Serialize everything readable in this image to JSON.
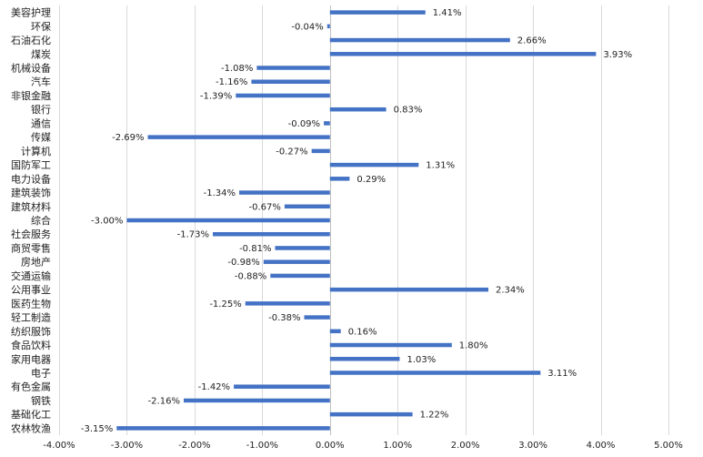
{
  "chart_data": {
    "type": "bar",
    "orientation": "horizontal",
    "title": "",
    "xlabel": "",
    "ylabel": "",
    "xlim": [
      -4.0,
      5.0
    ],
    "x_ticks": [
      -4,
      -3,
      -2,
      -1,
      0,
      1,
      2,
      3,
      4,
      5
    ],
    "x_tick_labels": [
      "-4.00%",
      "-3.00%",
      "-2.00%",
      "-1.00%",
      "0.00%",
      "1.00%",
      "2.00%",
      "3.00%",
      "4.00%",
      "5.00%"
    ],
    "grid": true,
    "legend": "none",
    "bar_color": "#4472C4",
    "categories": [
      "美容护理",
      "环保",
      "石油石化",
      "煤炭",
      "机械设备",
      "汽车",
      "非银金融",
      "银行",
      "通信",
      "传媒",
      "计算机",
      "国防军工",
      "电力设备",
      "建筑装饰",
      "建筑材料",
      "综合",
      "社会服务",
      "商贸零售",
      "房地产",
      "交通运输",
      "公用事业",
      "医药生物",
      "轻工制造",
      "纺织服饰",
      "食品饮料",
      "家用电器",
      "电子",
      "有色金属",
      "钢铁",
      "基础化工",
      "农林牧渔"
    ],
    "values": [
      1.41,
      -0.04,
      2.66,
      3.93,
      -1.08,
      -1.16,
      -1.39,
      0.83,
      -0.09,
      -2.69,
      -0.27,
      1.31,
      0.29,
      -1.34,
      -0.67,
      -3.0,
      -1.73,
      -0.81,
      -0.98,
      -0.88,
      2.34,
      -1.25,
      -0.38,
      0.16,
      1.8,
      1.03,
      3.11,
      -1.42,
      -2.16,
      1.22,
      -3.15
    ],
    "value_labels": [
      "1.41%",
      "-0.04%",
      "2.66%",
      "3.93%",
      "-1.08%",
      "-1.16%",
      "-1.39%",
      "0.83%",
      "-0.09%",
      "-2.69%",
      "-0.27%",
      "1.31%",
      "0.29%",
      "-1.34%",
      "-0.67%",
      "-3.00%",
      "-1.73%",
      "-0.81%",
      "-0.98%",
      "-0.88%",
      "2.34%",
      "-1.25%",
      "-0.38%",
      "0.16%",
      "1.80%",
      "1.03%",
      "3.11%",
      "-1.42%",
      "-2.16%",
      "1.22%",
      "-3.15%"
    ]
  }
}
